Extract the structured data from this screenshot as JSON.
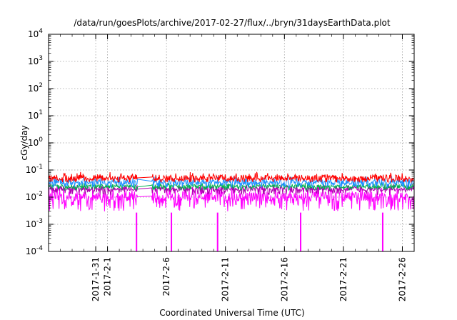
{
  "chart_data": {
    "type": "line",
    "title": "/data/run/goesPlots/archive/2017-02-27/flux/../bryn/31daysEarthData.plot",
    "xlabel": "Coordinated Universal Time (UTC)",
    "ylabel": "cGy/day",
    "yscale": "log",
    "ylim": [
      0.0001,
      10000
    ],
    "xlim": [
      "2017-01-27",
      "2017-02-27"
    ],
    "grid": true,
    "y_ticks": [
      {
        "base": "10",
        "exp": "-4"
      },
      {
        "base": "10",
        "exp": "-3"
      },
      {
        "base": "10",
        "exp": "-2"
      },
      {
        "base": "10",
        "exp": "-1"
      },
      {
        "base": "10",
        "exp": "0"
      },
      {
        "base": "10",
        "exp": "1"
      },
      {
        "base": "10",
        "exp": "2"
      },
      {
        "base": "10",
        "exp": "3"
      },
      {
        "base": "10",
        "exp": "4"
      }
    ],
    "x_ticks": [
      "2017-1-31",
      "2017-2-1",
      "2017-2-6",
      "2017-2-11",
      "2017-2-16",
      "2017-2-21",
      "2017-2-26"
    ],
    "x_tick_dates": [
      "2017-01-31",
      "2017-02-01",
      "2017-02-06",
      "2017-02-11",
      "2017-02-16",
      "2017-02-21",
      "2017-02-26"
    ],
    "data_gaps": [
      [
        "2017-02-03T14:00",
        "2017-02-04T18:00"
      ]
    ],
    "series": [
      {
        "color": "#ff0000",
        "typical": 0.05,
        "peak": 0.085,
        "low": 0.035
      },
      {
        "color": "#1e90ff",
        "typical": 0.035,
        "peak": 0.06,
        "low": 0.022
      },
      {
        "color": "#00b050",
        "typical": 0.025,
        "peak": 0.035,
        "low": 0.018
      },
      {
        "color": "#b000b0",
        "typical": 0.02,
        "peak": 0.03,
        "low": 0.012
      },
      {
        "color": "#ff00ff",
        "typical": 0.01,
        "peak": 0.025,
        "low": 0.003,
        "dips": [
          {
            "date": "2017-02-03T11:00",
            "value": 0.0001
          },
          {
            "date": "2017-02-06T10:00",
            "value": 0.0001
          },
          {
            "date": "2017-02-10T08:00",
            "value": 0.0001
          },
          {
            "date": "2017-02-17T09:00",
            "value": 0.0001
          },
          {
            "date": "2017-02-24T08:00",
            "value": 0.0001
          }
        ]
      }
    ]
  }
}
